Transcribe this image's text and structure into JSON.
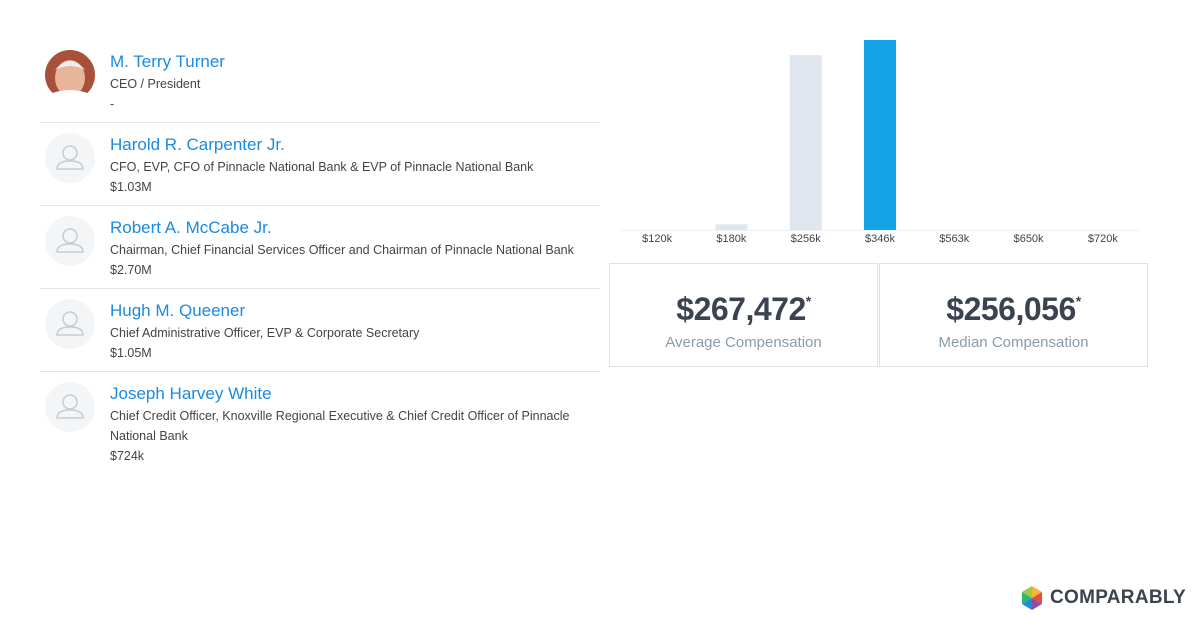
{
  "people": [
    {
      "name": "M. Terry Turner",
      "title": "CEO / President",
      "compensation": "-"
    },
    {
      "name": "Harold R. Carpenter Jr.",
      "title": "CFO, EVP, CFO of Pinnacle National Bank & EVP of Pinnacle National Bank",
      "compensation": "$1.03M"
    },
    {
      "name": "Robert A. McCabe Jr.",
      "title": "Chairman, Chief Financial Services Officer and Chairman of Pinnacle National Bank",
      "compensation": "$2.70M"
    },
    {
      "name": "Hugh M. Queener",
      "title": "Chief Administrative Officer, EVP & Corporate Secretary",
      "compensation": "$1.05M"
    },
    {
      "name": "Joseph Harvey White",
      "title": "Chief Credit Officer, Knoxville Regional Executive & Chief Credit Officer of Pinnacle National Bank",
      "compensation": "$724k"
    }
  ],
  "chart_data": {
    "type": "bar",
    "categories": [
      "$120k",
      "$180k",
      "$256k",
      "$346k",
      "$563k",
      "$650k",
      "$720k"
    ],
    "values": [
      0,
      3,
      92,
      100,
      0,
      0,
      0
    ],
    "colors": [
      "#dfe6ee",
      "#dfe6ee",
      "#dfe6ee",
      "#14a3e8",
      "#dfe6ee",
      "#dfe6ee",
      "#dfe6ee"
    ],
    "ylim": [
      0,
      100
    ]
  },
  "stats": [
    {
      "value": "$267,472",
      "mark": "*",
      "label": "Average Compensation"
    },
    {
      "value": "$256,056",
      "mark": "*",
      "label": "Median Compensation"
    }
  ],
  "logo": "COMPARABLY"
}
